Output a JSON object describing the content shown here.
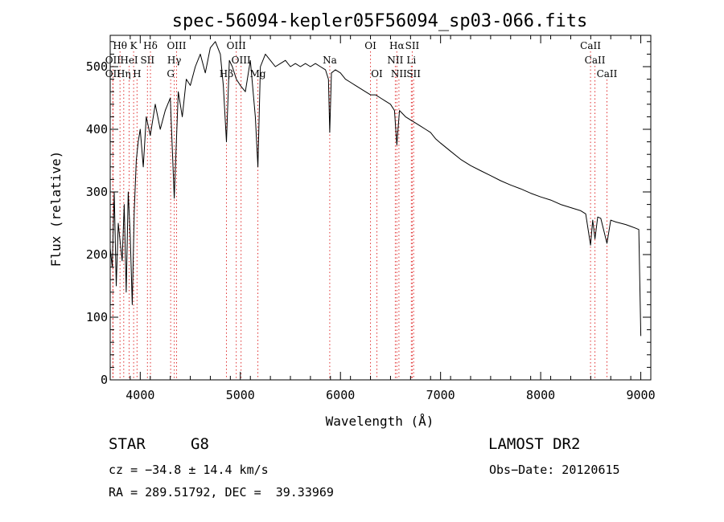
{
  "chart_data": {
    "type": "line",
    "title": "spec-56094-kepler05F56094_sp03-066.fits",
    "xlabel": "Wavelength (Å)",
    "ylabel": "Flux (relative)",
    "xlim": [
      3700,
      9100
    ],
    "ylim": [
      0,
      550
    ],
    "x_ticks": [
      4000,
      5000,
      6000,
      7000,
      8000,
      9000
    ],
    "y_ticks": [
      0,
      100,
      200,
      300,
      400,
      500
    ],
    "grid": false,
    "line_color": "#000000",
    "marker_line_color": "#e03030",
    "series": [
      {
        "x": [
          3700,
          3720,
          3740,
          3760,
          3780,
          3800,
          3820,
          3840,
          3860,
          3880,
          3900,
          3920,
          3940,
          3960,
          3980,
          4000,
          4030,
          4060,
          4100,
          4150,
          4200,
          4250,
          4300,
          4340,
          4380,
          4420,
          4460,
          4500,
          4550,
          4600,
          4650,
          4700,
          4750,
          4800,
          4830,
          4861,
          4890,
          4920,
          4960,
          5000,
          5050,
          5100,
          5150,
          5175,
          5200,
          5250,
          5300,
          5350,
          5400,
          5450,
          5500,
          5550,
          5600,
          5650,
          5700,
          5750,
          5800,
          5850,
          5880,
          5893,
          5910,
          5950,
          6000,
          6050,
          6100,
          6150,
          6200,
          6250,
          6300,
          6350,
          6400,
          6450,
          6500,
          6540,
          6563,
          6590,
          6620,
          6650,
          6700,
          6750,
          6800,
          6850,
          6900,
          6950,
          7000,
          7100,
          7200,
          7300,
          7400,
          7500,
          7600,
          7700,
          7800,
          7900,
          8000,
          8100,
          8200,
          8300,
          8400,
          8450,
          8498,
          8520,
          8542,
          8570,
          8600,
          8662,
          8700,
          8750,
          8800,
          8850,
          8900,
          8950,
          8980,
          9000
        ],
        "y": [
          210,
          180,
          300,
          150,
          250,
          220,
          190,
          280,
          140,
          300,
          230,
          120,
          270,
          350,
          380,
          400,
          340,
          420,
          390,
          440,
          400,
          430,
          450,
          290,
          460,
          420,
          480,
          470,
          500,
          520,
          490,
          530,
          540,
          520,
          470,
          380,
          510,
          500,
          480,
          470,
          460,
          510,
          420,
          340,
          500,
          520,
          510,
          500,
          505,
          510,
          500,
          505,
          500,
          505,
          500,
          505,
          500,
          495,
          480,
          395,
          490,
          495,
          490,
          480,
          475,
          470,
          465,
          460,
          455,
          455,
          450,
          445,
          440,
          430,
          375,
          430,
          425,
          420,
          415,
          410,
          405,
          400,
          395,
          385,
          378,
          365,
          352,
          342,
          334,
          326,
          318,
          311,
          305,
          298,
          292,
          287,
          280,
          275,
          270,
          265,
          215,
          255,
          225,
          260,
          258,
          218,
          255,
          252,
          250,
          248,
          245,
          242,
          240,
          70
        ]
      }
    ],
    "line_markers": [
      {
        "label": "Hθ",
        "x": 3798,
        "row": 1
      },
      {
        "label": "K",
        "x": 3934,
        "row": 1
      },
      {
        "label": "Hδ",
        "x": 4102,
        "row": 1
      },
      {
        "label": "OIII",
        "x": 4363,
        "row": 1
      },
      {
        "label": "OIII",
        "x": 4959,
        "row": 1
      },
      {
        "label": "OI",
        "x": 6300,
        "row": 1
      },
      {
        "label": "Hα",
        "x": 6563,
        "row": 1
      },
      {
        "label": "SII",
        "x": 6717,
        "row": 1
      },
      {
        "label": "CaII",
        "x": 8498,
        "row": 1
      },
      {
        "label": "OII",
        "x": 3727,
        "row": 2
      },
      {
        "label": "HeI",
        "x": 3889,
        "row": 2
      },
      {
        "label": "SII",
        "x": 4072,
        "row": 2
      },
      {
        "label": "Hγ",
        "x": 4340,
        "row": 2
      },
      {
        "label": "OIII",
        "x": 5007,
        "row": 2
      },
      {
        "label": "Na",
        "x": 5893,
        "row": 2
      },
      {
        "label": "NII",
        "x": 6548,
        "row": 2
      },
      {
        "label": "Li",
        "x": 6708,
        "row": 2
      },
      {
        "label": "CaII",
        "x": 8542,
        "row": 2
      },
      {
        "label": "OII",
        "x": 3727,
        "row": 3
      },
      {
        "label": "Hη",
        "x": 3835,
        "row": 3
      },
      {
        "label": "H",
        "x": 3968,
        "row": 3
      },
      {
        "label": "G",
        "x": 4304,
        "row": 3
      },
      {
        "label": "Hβ",
        "x": 4861,
        "row": 3
      },
      {
        "label": "Mg",
        "x": 5175,
        "row": 3
      },
      {
        "label": "OI",
        "x": 6364,
        "row": 3
      },
      {
        "label": "NII",
        "x": 6584,
        "row": 3
      },
      {
        "label": "SII",
        "x": 6731,
        "row": 3
      },
      {
        "label": "CaII",
        "x": 8662,
        "row": 3
      }
    ]
  },
  "info": {
    "object_class": "STAR",
    "subclass": "G8",
    "survey": "LAMOST DR2",
    "redshift": "cz = −34.8 ± 14.4 km/s",
    "obs_date": "Obs−Date: 20120615",
    "coords": "RA = 289.51792, DEC =  39.33969"
  }
}
